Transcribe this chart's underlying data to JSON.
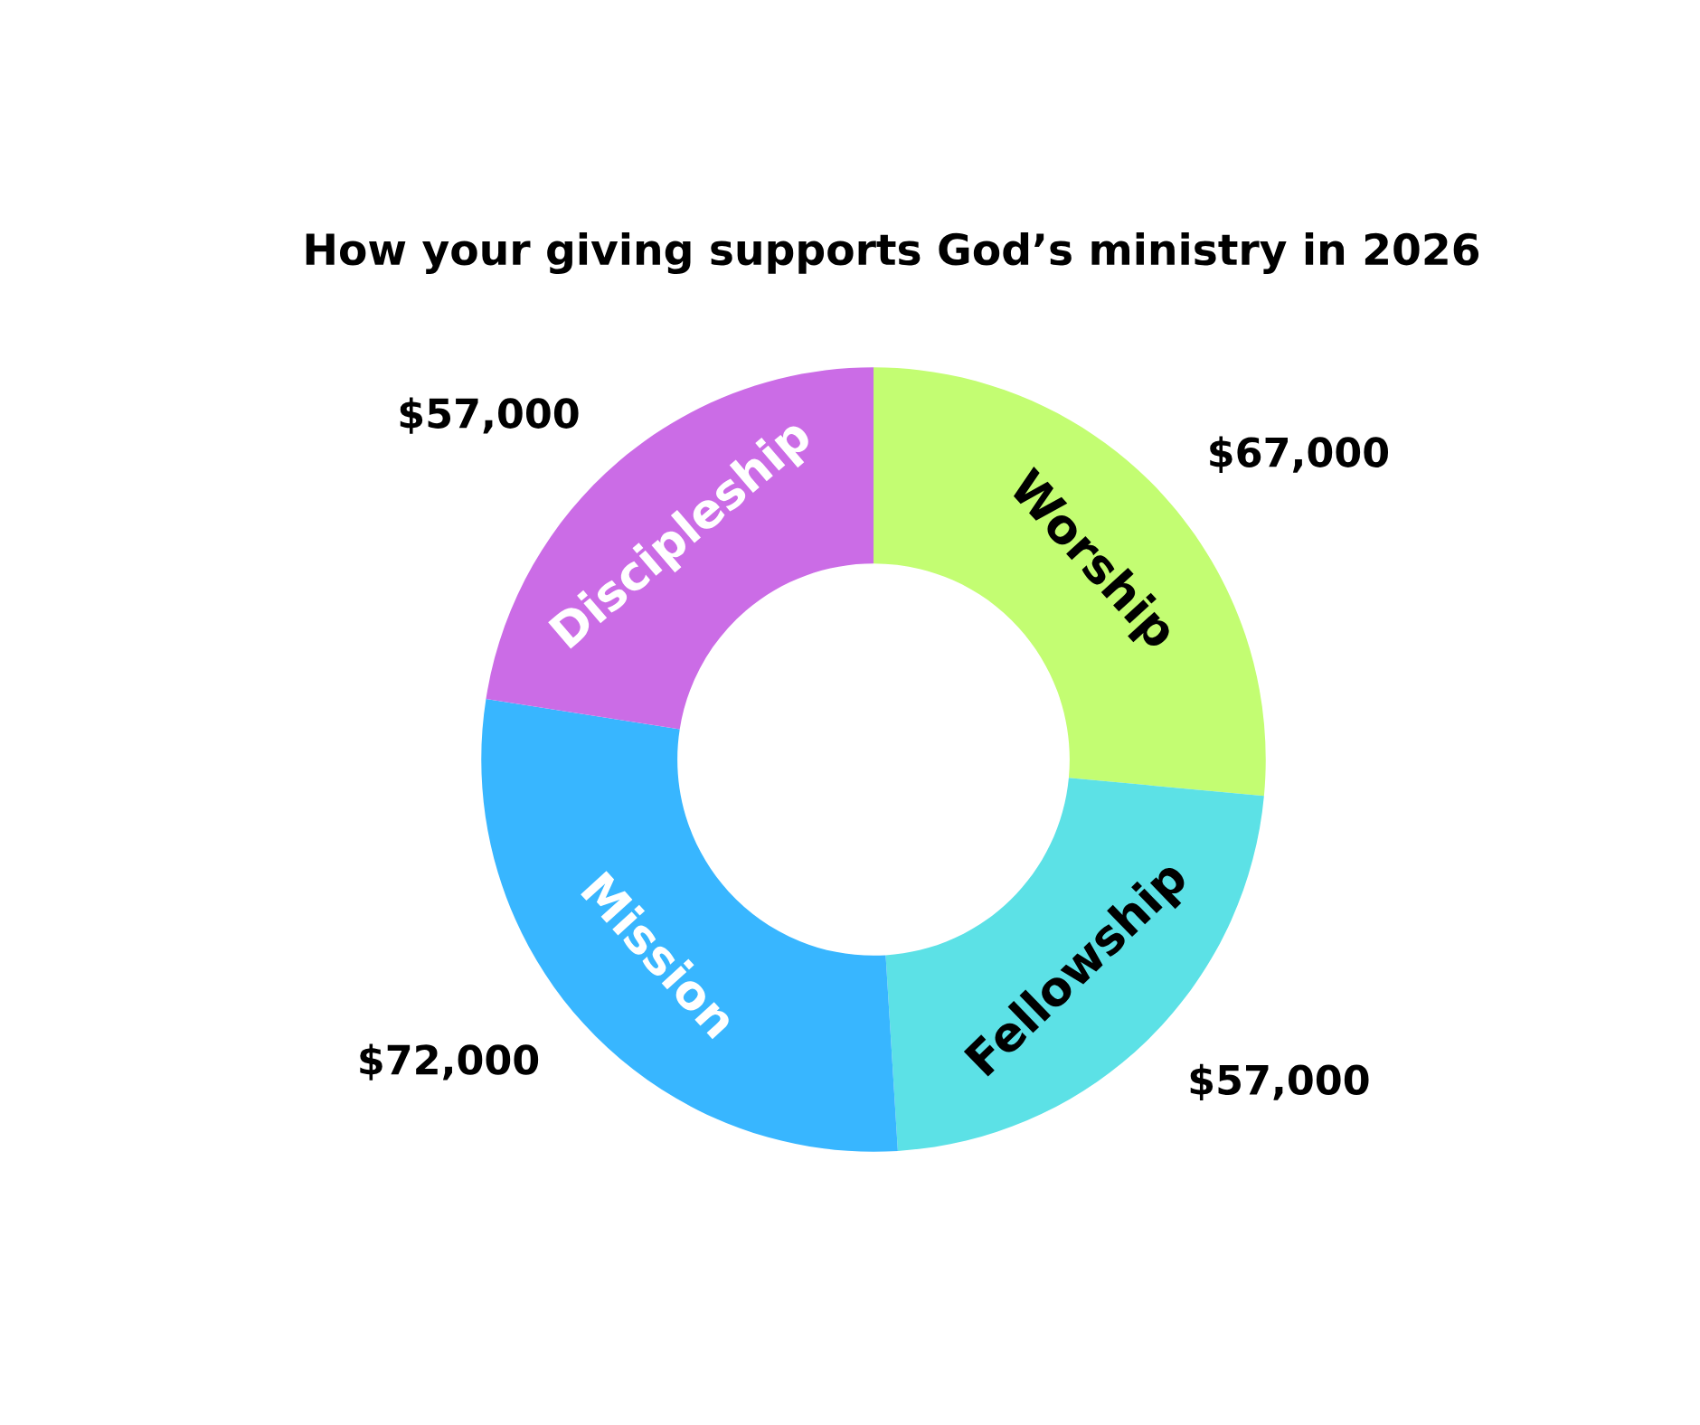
{
  "chart_data": {
    "type": "donut",
    "title": "How your giving supports God’s ministry in 2026",
    "categories": [
      "Worship",
      "Fellowship",
      "Mission",
      "Discipleship"
    ],
    "values": [
      67000,
      57000,
      72000,
      57000
    ],
    "colors": [
      "#c3fd72",
      "#5ce1e6",
      "#38b6ff",
      "#cb6ce6"
    ],
    "value_labels": [
      "$67,000",
      "$57,000",
      "$72,000",
      "$57,000"
    ]
  }
}
